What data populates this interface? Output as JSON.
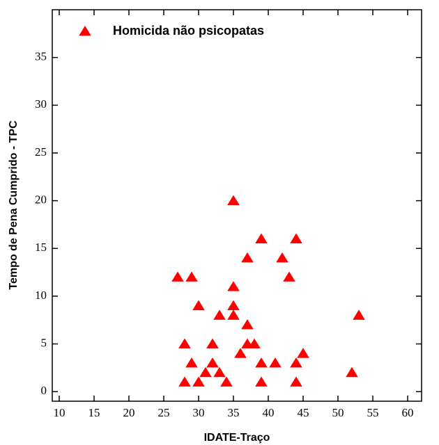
{
  "chart_data": {
    "type": "scatter",
    "x_label": "IDATE-Traço",
    "y_label": "Tempo de Pena Cumprido - TPC",
    "xlim": [
      9,
      62
    ],
    "ylim": [
      -1,
      40
    ],
    "xticks": [
      10,
      15,
      20,
      25,
      30,
      35,
      40,
      45,
      50,
      55,
      60
    ],
    "yticks": [
      0,
      5,
      10,
      15,
      20,
      25,
      30,
      35
    ],
    "legend_position": "upper left",
    "series": [
      {
        "name": "Homicida não psicopatas",
        "color": "#ff0000",
        "marker": "triangle",
        "x": [
          27,
          29,
          30,
          28,
          29,
          28,
          30,
          31,
          32,
          32,
          33,
          33,
          34,
          35,
          35,
          35,
          35,
          36,
          37,
          37,
          37,
          38,
          39,
          39,
          39,
          41,
          42,
          43,
          44,
          44,
          44,
          45,
          52,
          53
        ],
        "values": [
          12,
          12,
          9,
          5,
          3,
          1,
          1,
          2,
          3,
          5,
          8,
          2,
          1,
          20,
          11,
          9,
          8,
          4,
          14,
          7,
          5,
          5,
          16,
          3,
          1,
          3,
          14,
          12,
          16,
          3,
          1,
          4,
          2,
          8
        ]
      }
    ]
  }
}
